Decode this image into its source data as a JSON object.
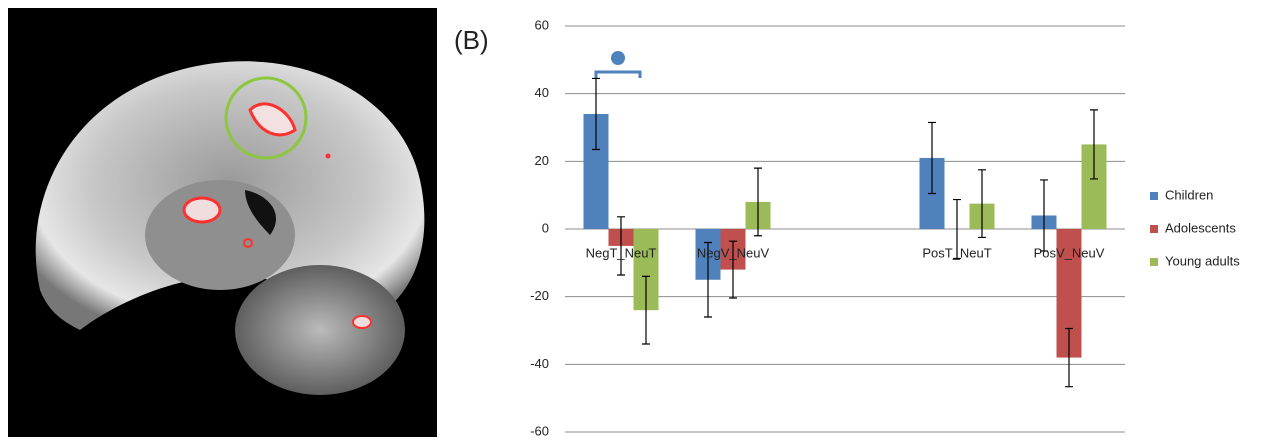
{
  "chart_data": {
    "type": "bar",
    "panel_label": "(B)",
    "categories": [
      "NegT_NeuT",
      "NegV_NeuV",
      null,
      "PosT_NeuT",
      "PosV_NeuV"
    ],
    "series": [
      {
        "name": "Children",
        "color": "#4f81bd",
        "values": [
          34,
          -15,
          null,
          21,
          4
        ],
        "errors": [
          10.5,
          11,
          null,
          10.5,
          10.5
        ]
      },
      {
        "name": "Adolescents",
        "color": "#c0504d",
        "values": [
          -5,
          -12,
          null,
          0,
          -38
        ],
        "errors": [
          8.6,
          8.4,
          null,
          8.7,
          8.6
        ]
      },
      {
        "name": "Young adults",
        "color": "#9bbb59",
        "values": [
          -24,
          8,
          null,
          7.5,
          25
        ],
        "errors": [
          10,
          10,
          null,
          10,
          10.2
        ]
      }
    ],
    "ylim": [
      -60,
      60
    ],
    "yticks": [
      -60,
      -40,
      -20,
      0,
      20,
      40,
      60
    ],
    "grid": true,
    "legend": "right"
  }
}
